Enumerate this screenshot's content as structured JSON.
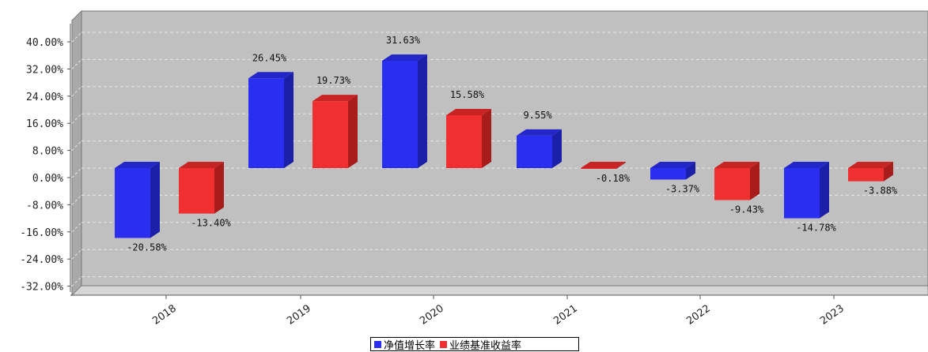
{
  "chart_data": {
    "type": "bar",
    "categories": [
      "2018",
      "2019",
      "2020",
      "2021",
      "2022",
      "2023"
    ],
    "series": [
      {
        "name": "净值增长率",
        "values": [
          -20.58,
          26.45,
          31.63,
          9.55,
          -3.37,
          -14.78
        ],
        "labels": [
          "-20.58%",
          "26.45%",
          "31.63%",
          "9.55%",
          "-3.37%",
          "-14.78%"
        ]
      },
      {
        "name": "业绩基准收益率",
        "values": [
          -13.4,
          19.73,
          15.58,
          -0.18,
          -9.43,
          -3.88
        ],
        "labels": [
          "-13.40%",
          "19.73%",
          "15.58%",
          "-0.18%",
          "-9.43%",
          "-3.88%"
        ]
      }
    ],
    "ylim": [
      -36,
      44
    ],
    "yticks": [
      -32,
      -24,
      -16,
      -8,
      0,
      8,
      16,
      24,
      32,
      40
    ],
    "ytick_labels": [
      "-32.00%",
      "-24.00%",
      "-16.00%",
      "-8.00%",
      "0.00%",
      "8.00%",
      "16.00%",
      "24.00%",
      "32.00%",
      "40.00%"
    ],
    "grid": true,
    "style": "3d",
    "legend_position": "bottom-center",
    "colors": [
      "#2a2ef0",
      "#f03030"
    ],
    "plot_background": "#c0c0c0"
  }
}
